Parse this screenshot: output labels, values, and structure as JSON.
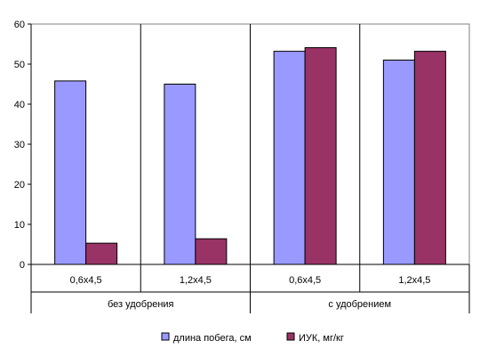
{
  "chart_data": {
    "type": "bar",
    "categories": [
      "0,6x4,5",
      "1,2x4,5",
      "0,6x4,5",
      "1,2x4,5"
    ],
    "groups": [
      {
        "label": "без удобрения",
        "categories": [
          0,
          1
        ]
      },
      {
        "label": "с удобрением",
        "categories": [
          2,
          3
        ]
      }
    ],
    "series": [
      {
        "name": "длина побега, см",
        "color": "#9999ff",
        "values": [
          45.8,
          45.0,
          53.2,
          51.0
        ]
      },
      {
        "name": "ИУК, мг/кг",
        "color": "#993366",
        "values": [
          5.3,
          6.4,
          54.1,
          53.2
        ]
      }
    ],
    "ylim": [
      0,
      60
    ],
    "yticks": [
      "0",
      "10",
      "20",
      "30",
      "40",
      "50",
      "60"
    ],
    "grid": false,
    "legend_position": "bottom"
  }
}
